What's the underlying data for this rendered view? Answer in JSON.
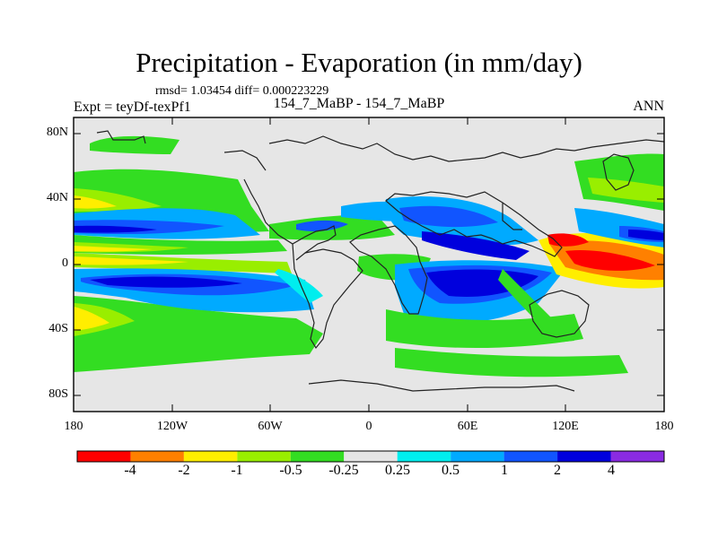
{
  "map": {
    "title": "Precipitation - Evaporation (in mm/day)",
    "stats_line": "rmsd= 1.03454  diff= 0.000223229",
    "left_label": "Expt = teyDf-texPf1",
    "center_label": "154_7_MaBP - 154_7_MaBP",
    "right_label": "ANN",
    "lat_ticks": [
      "80N",
      "40N",
      "0",
      "40S",
      "80S"
    ],
    "lon_ticks": [
      "180",
      "120W",
      "60W",
      "0",
      "60E",
      "120E",
      "180"
    ],
    "colorbar_labels": [
      "-4",
      "-2",
      "-1",
      "-0.5",
      "-0.25",
      "0.25",
      "0.5",
      "1",
      "2",
      "4"
    ],
    "colorbar_colors": [
      "#ff0000",
      "#ff8000",
      "#ffee00",
      "#99ee00",
      "#33dd22",
      "#e6e6e6",
      "#00eeee",
      "#00aaff",
      "#1155ff",
      "#0000dd",
      "#8a2be2"
    ],
    "colors": {
      "neutral": "#e6e6e6",
      "light_green": "#33dd22",
      "yellow_green": "#99ee00",
      "yellow": "#ffee00",
      "orange": "#ff8000",
      "red": "#ff0000",
      "cyan": "#00eeee",
      "light_blue": "#00aaff",
      "blue": "#1155ff",
      "dark_blue": "#0000dd",
      "purple": "#8a2be2",
      "coast": "#222222"
    }
  }
}
